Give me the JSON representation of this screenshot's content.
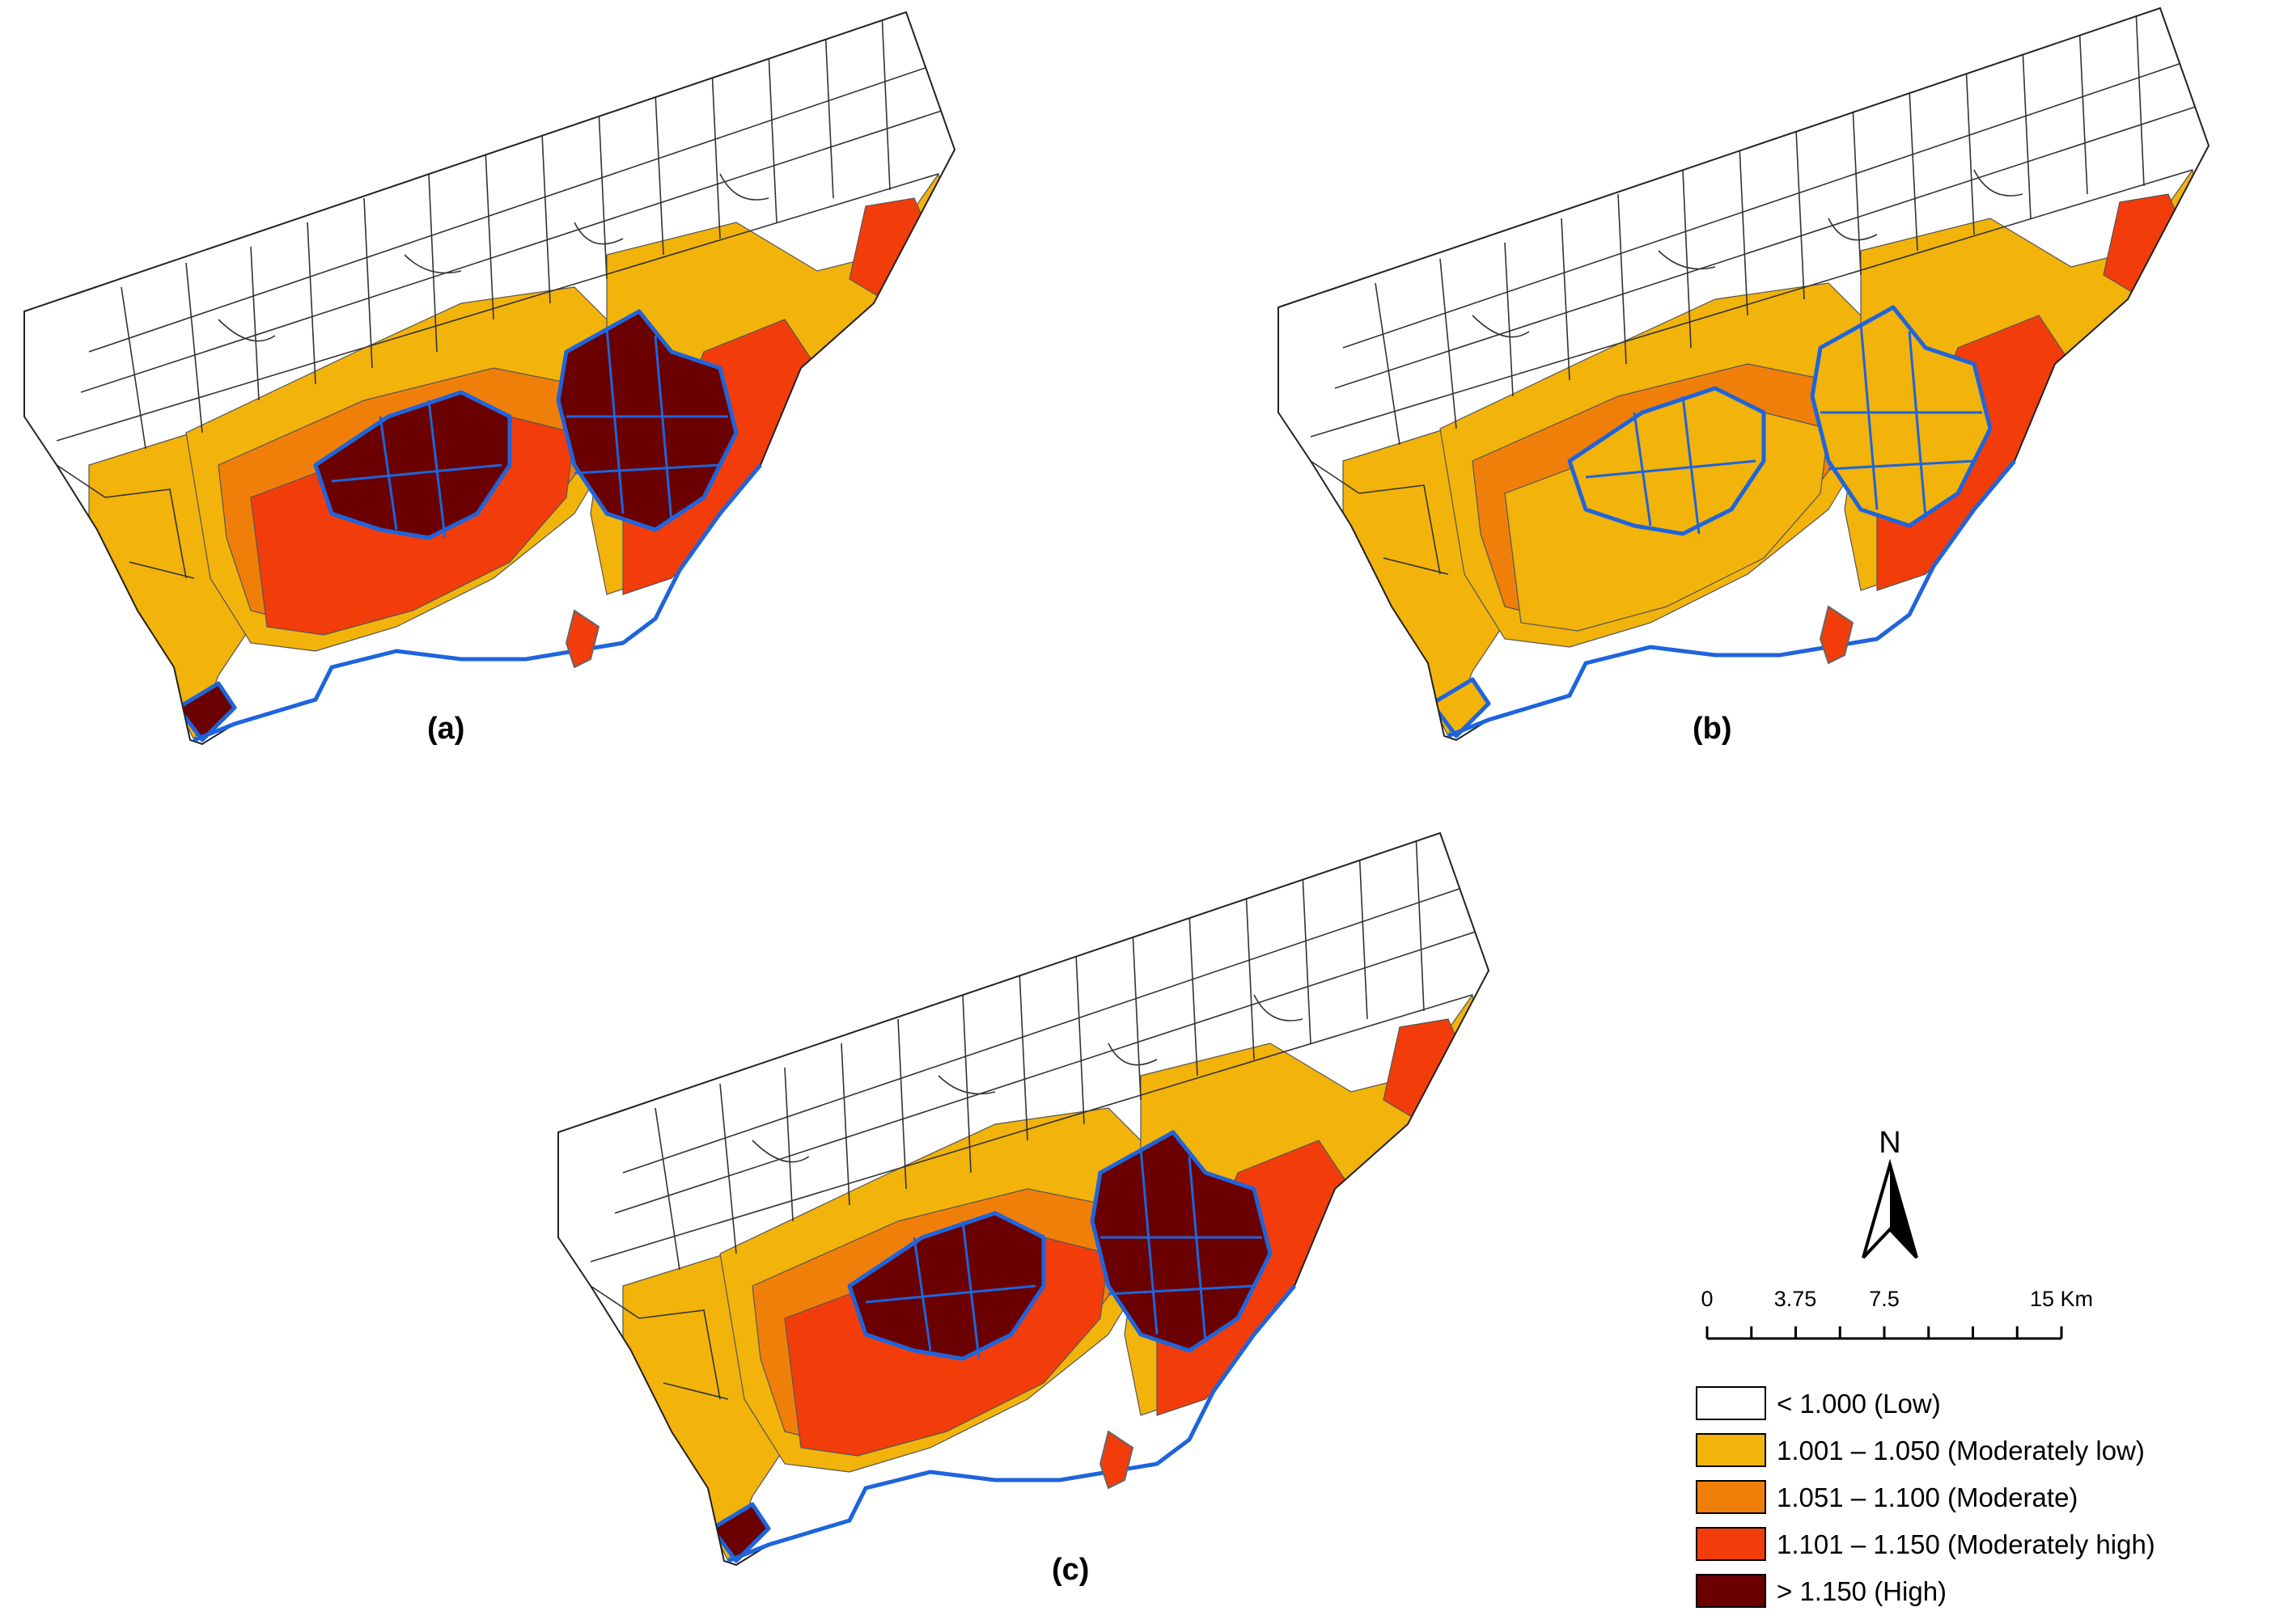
{
  "panels": [
    {
      "label": "(a)",
      "hot_fill": "#6b0000",
      "ring1_fill": "#f23d0a",
      "ring2_fill": "#f07f0a",
      "ring3_fill": "#f2b30a",
      "east_fill": "#f23d0a",
      "west_fill": "#f2b30a"
    },
    {
      "label": "(b)",
      "hot_fill": "#f2b30a",
      "ring1_fill": "#f2b30a",
      "ring2_fill": "#f07f0a",
      "ring3_fill": "#f2b30a",
      "east_fill": "#f23d0a",
      "west_fill": "#f2b30a"
    },
    {
      "label": "(c)",
      "hot_fill": "#6b0000",
      "ring1_fill": "#f23d0a",
      "ring2_fill": "#f07f0a",
      "ring3_fill": "#f2b30a",
      "east_fill": "#f23d0a",
      "west_fill": "#f2b30a"
    }
  ],
  "north_arrow": {
    "label": "N"
  },
  "scale_bar": {
    "ticks": [
      "0",
      "3.75",
      "7.5",
      "15 Km"
    ]
  },
  "legend": [
    {
      "label": "< 1.000 (Low)",
      "color": "#ffffff"
    },
    {
      "label": "1.001 – 1.050 (Moderately low)",
      "color": "#f2b30a"
    },
    {
      "label": "1.051 – 1.100 (Moderate)",
      "color": "#f07f0a"
    },
    {
      "label": "1.101 – 1.150 (Moderately high)",
      "color": "#f23d0a"
    },
    {
      "label": "> 1.150 (High)",
      "color": "#6b0000"
    }
  ],
  "cluster_outline_color": "#1e64dc"
}
